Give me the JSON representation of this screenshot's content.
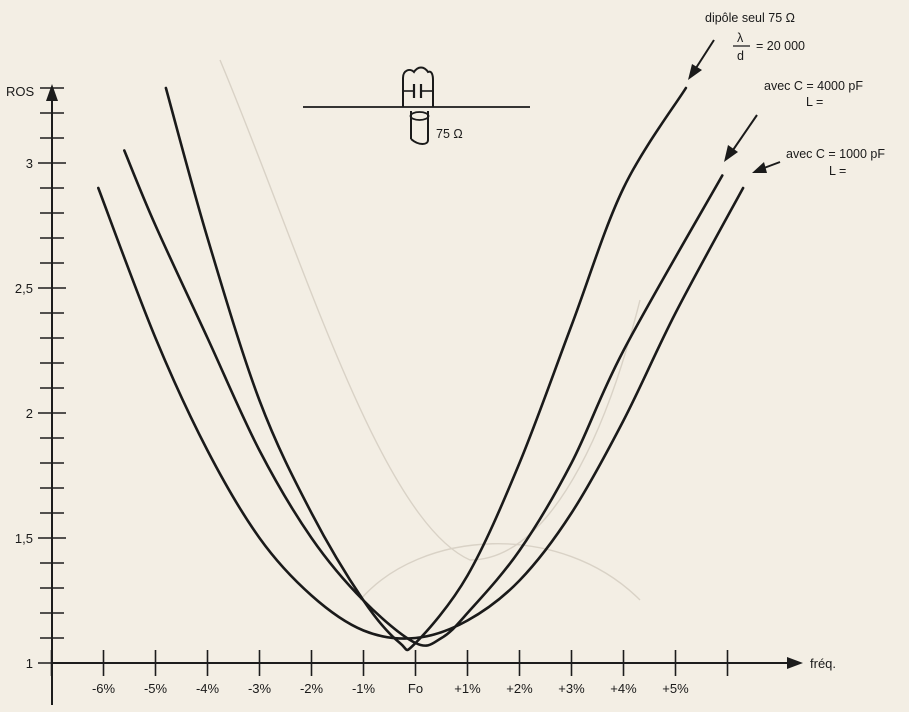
{
  "chart_data": {
    "type": "line",
    "ylabel": "ROS",
    "xlabel": "fréq.",
    "x_ticks": [
      "-6%",
      "-5%",
      "-4%",
      "-3%",
      "-2%",
      "-1%",
      "Fo",
      "+1%",
      "+2%",
      "+3%",
      "+4%",
      "+5%"
    ],
    "y_ticks": [
      "1",
      "1,5",
      "2",
      "2,5",
      "3"
    ],
    "xlim": [
      -7.4,
      8.1
    ],
    "ylim": [
      1,
      3.3
    ],
    "series": [
      {
        "name": "dipôle seul 75 Ω",
        "x": [
          -4.8,
          -4,
          -3,
          -2,
          -1,
          -0.3,
          0,
          1,
          2,
          3,
          4,
          5.2
        ],
        "y": [
          3.3,
          2.7,
          2.05,
          1.6,
          1.25,
          1.08,
          1.08,
          1.35,
          1.8,
          2.35,
          2.9,
          3.3
        ]
      },
      {
        "name": "avec C = 4000 pF",
        "x": [
          -5.6,
          -5,
          -4,
          -3,
          -2,
          -1,
          0,
          0.5,
          1,
          2,
          3,
          4,
          5.9
        ],
        "y": [
          3.05,
          2.75,
          2.3,
          1.85,
          1.5,
          1.25,
          1.08,
          1.1,
          1.2,
          1.45,
          1.8,
          2.25,
          2.95
        ]
      },
      {
        "name": "avec C = 1000 pF",
        "x": [
          -6.1,
          -5,
          -4,
          -3,
          -2,
          -1,
          0,
          1,
          2,
          3,
          4,
          5,
          6.3
        ],
        "y": [
          2.9,
          2.3,
          1.85,
          1.5,
          1.27,
          1.13,
          1.1,
          1.17,
          1.33,
          1.6,
          1.97,
          2.4,
          2.9
        ]
      }
    ]
  },
  "inset": {
    "impedance_label": "75 Ω"
  },
  "annotations": {
    "dipole_title": "dipôle seul 75 Ω",
    "ratio_numerator": "λ",
    "ratio_denominator": "d",
    "ratio_value": "= 20 000",
    "c4000_line1": "avec C = 4000 pF",
    "c4000_line2": "L =",
    "c1000_line1": "avec C = 1000 pF",
    "c1000_line2": "L ="
  },
  "colors": {
    "paper": "#f3eee4",
    "ink": "#1a1a1a"
  }
}
